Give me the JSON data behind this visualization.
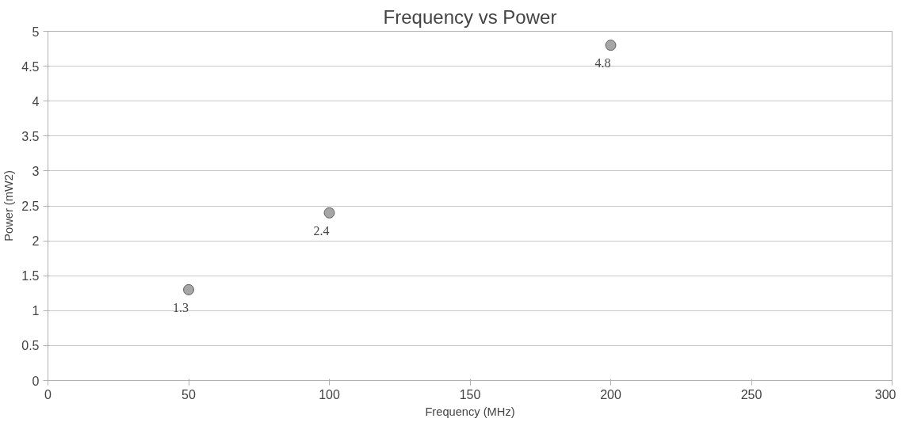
{
  "chart_data": {
    "type": "scatter",
    "title": "Frequency vs Power",
    "xlabel": "Frequency (MHz)",
    "ylabel": "Power (mW2)",
    "x": [
      50,
      100,
      200
    ],
    "series": [
      {
        "color": "#a6a6a6",
        "values": [
          1.3,
          2.4,
          4.8
        ]
      }
    ],
    "data_labels": true,
    "marker": "circle",
    "xlim": [
      0,
      300
    ],
    "xticks": [
      0,
      50,
      100,
      150,
      200,
      250,
      300
    ],
    "ylim": [
      0,
      5
    ],
    "yticks": [
      0,
      0.5,
      1,
      1.5,
      2,
      2.5,
      3,
      3.5,
      4,
      4.5,
      5
    ],
    "grid": "y"
  }
}
